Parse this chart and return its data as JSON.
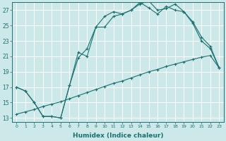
{
  "xlabel": "Humidex (Indice chaleur)",
  "bg_color": "#cce8e8",
  "grid_color": "#b8d8d8",
  "line_color": "#1a7070",
  "xlim": [
    -0.5,
    23.5
  ],
  "ylim": [
    12.5,
    28.0
  ],
  "xticks": [
    0,
    1,
    2,
    3,
    4,
    5,
    6,
    7,
    8,
    9,
    10,
    11,
    12,
    13,
    14,
    15,
    16,
    17,
    18,
    19,
    20,
    21,
    22,
    23
  ],
  "yticks": [
    13,
    15,
    17,
    19,
    21,
    23,
    25,
    27
  ],
  "line1_x": [
    0,
    1,
    2,
    3,
    4,
    5,
    6,
    7,
    8,
    9,
    10,
    11,
    12,
    13,
    14,
    15,
    16,
    17,
    18,
    19,
    20,
    21,
    22,
    23
  ],
  "line1_y": [
    13.5,
    13.8,
    14.1,
    14.5,
    14.8,
    15.1,
    15.5,
    15.9,
    16.3,
    16.7,
    17.1,
    17.5,
    17.8,
    18.2,
    18.6,
    19.0,
    19.3,
    19.7,
    20.0,
    20.3,
    20.6,
    20.9,
    21.1,
    19.5
  ],
  "line2_x": [
    0,
    1,
    2,
    3,
    4,
    5,
    6,
    7,
    8,
    9,
    10,
    11,
    12,
    13,
    14,
    15,
    16,
    17,
    18,
    19,
    20,
    21,
    22,
    23
  ],
  "line2_y": [
    17.0,
    16.5,
    15.0,
    13.2,
    13.2,
    13.0,
    17.2,
    21.5,
    21.0,
    24.8,
    26.2,
    26.8,
    26.5,
    27.0,
    27.8,
    28.2,
    27.0,
    27.2,
    27.8,
    26.8,
    25.3,
    23.0,
    22.0,
    19.5
  ],
  "line3_x": [
    0,
    1,
    2,
    3,
    4,
    5,
    6,
    7,
    8,
    9,
    10,
    11,
    12,
    13,
    14,
    15,
    16,
    17,
    18,
    19,
    20,
    21,
    22,
    23
  ],
  "line3_y": [
    17.0,
    16.5,
    15.0,
    13.2,
    13.2,
    13.0,
    17.2,
    20.8,
    22.0,
    24.8,
    24.8,
    26.2,
    26.5,
    27.0,
    28.0,
    27.3,
    26.5,
    27.5,
    27.0,
    26.8,
    25.5,
    23.5,
    22.3,
    19.5
  ]
}
